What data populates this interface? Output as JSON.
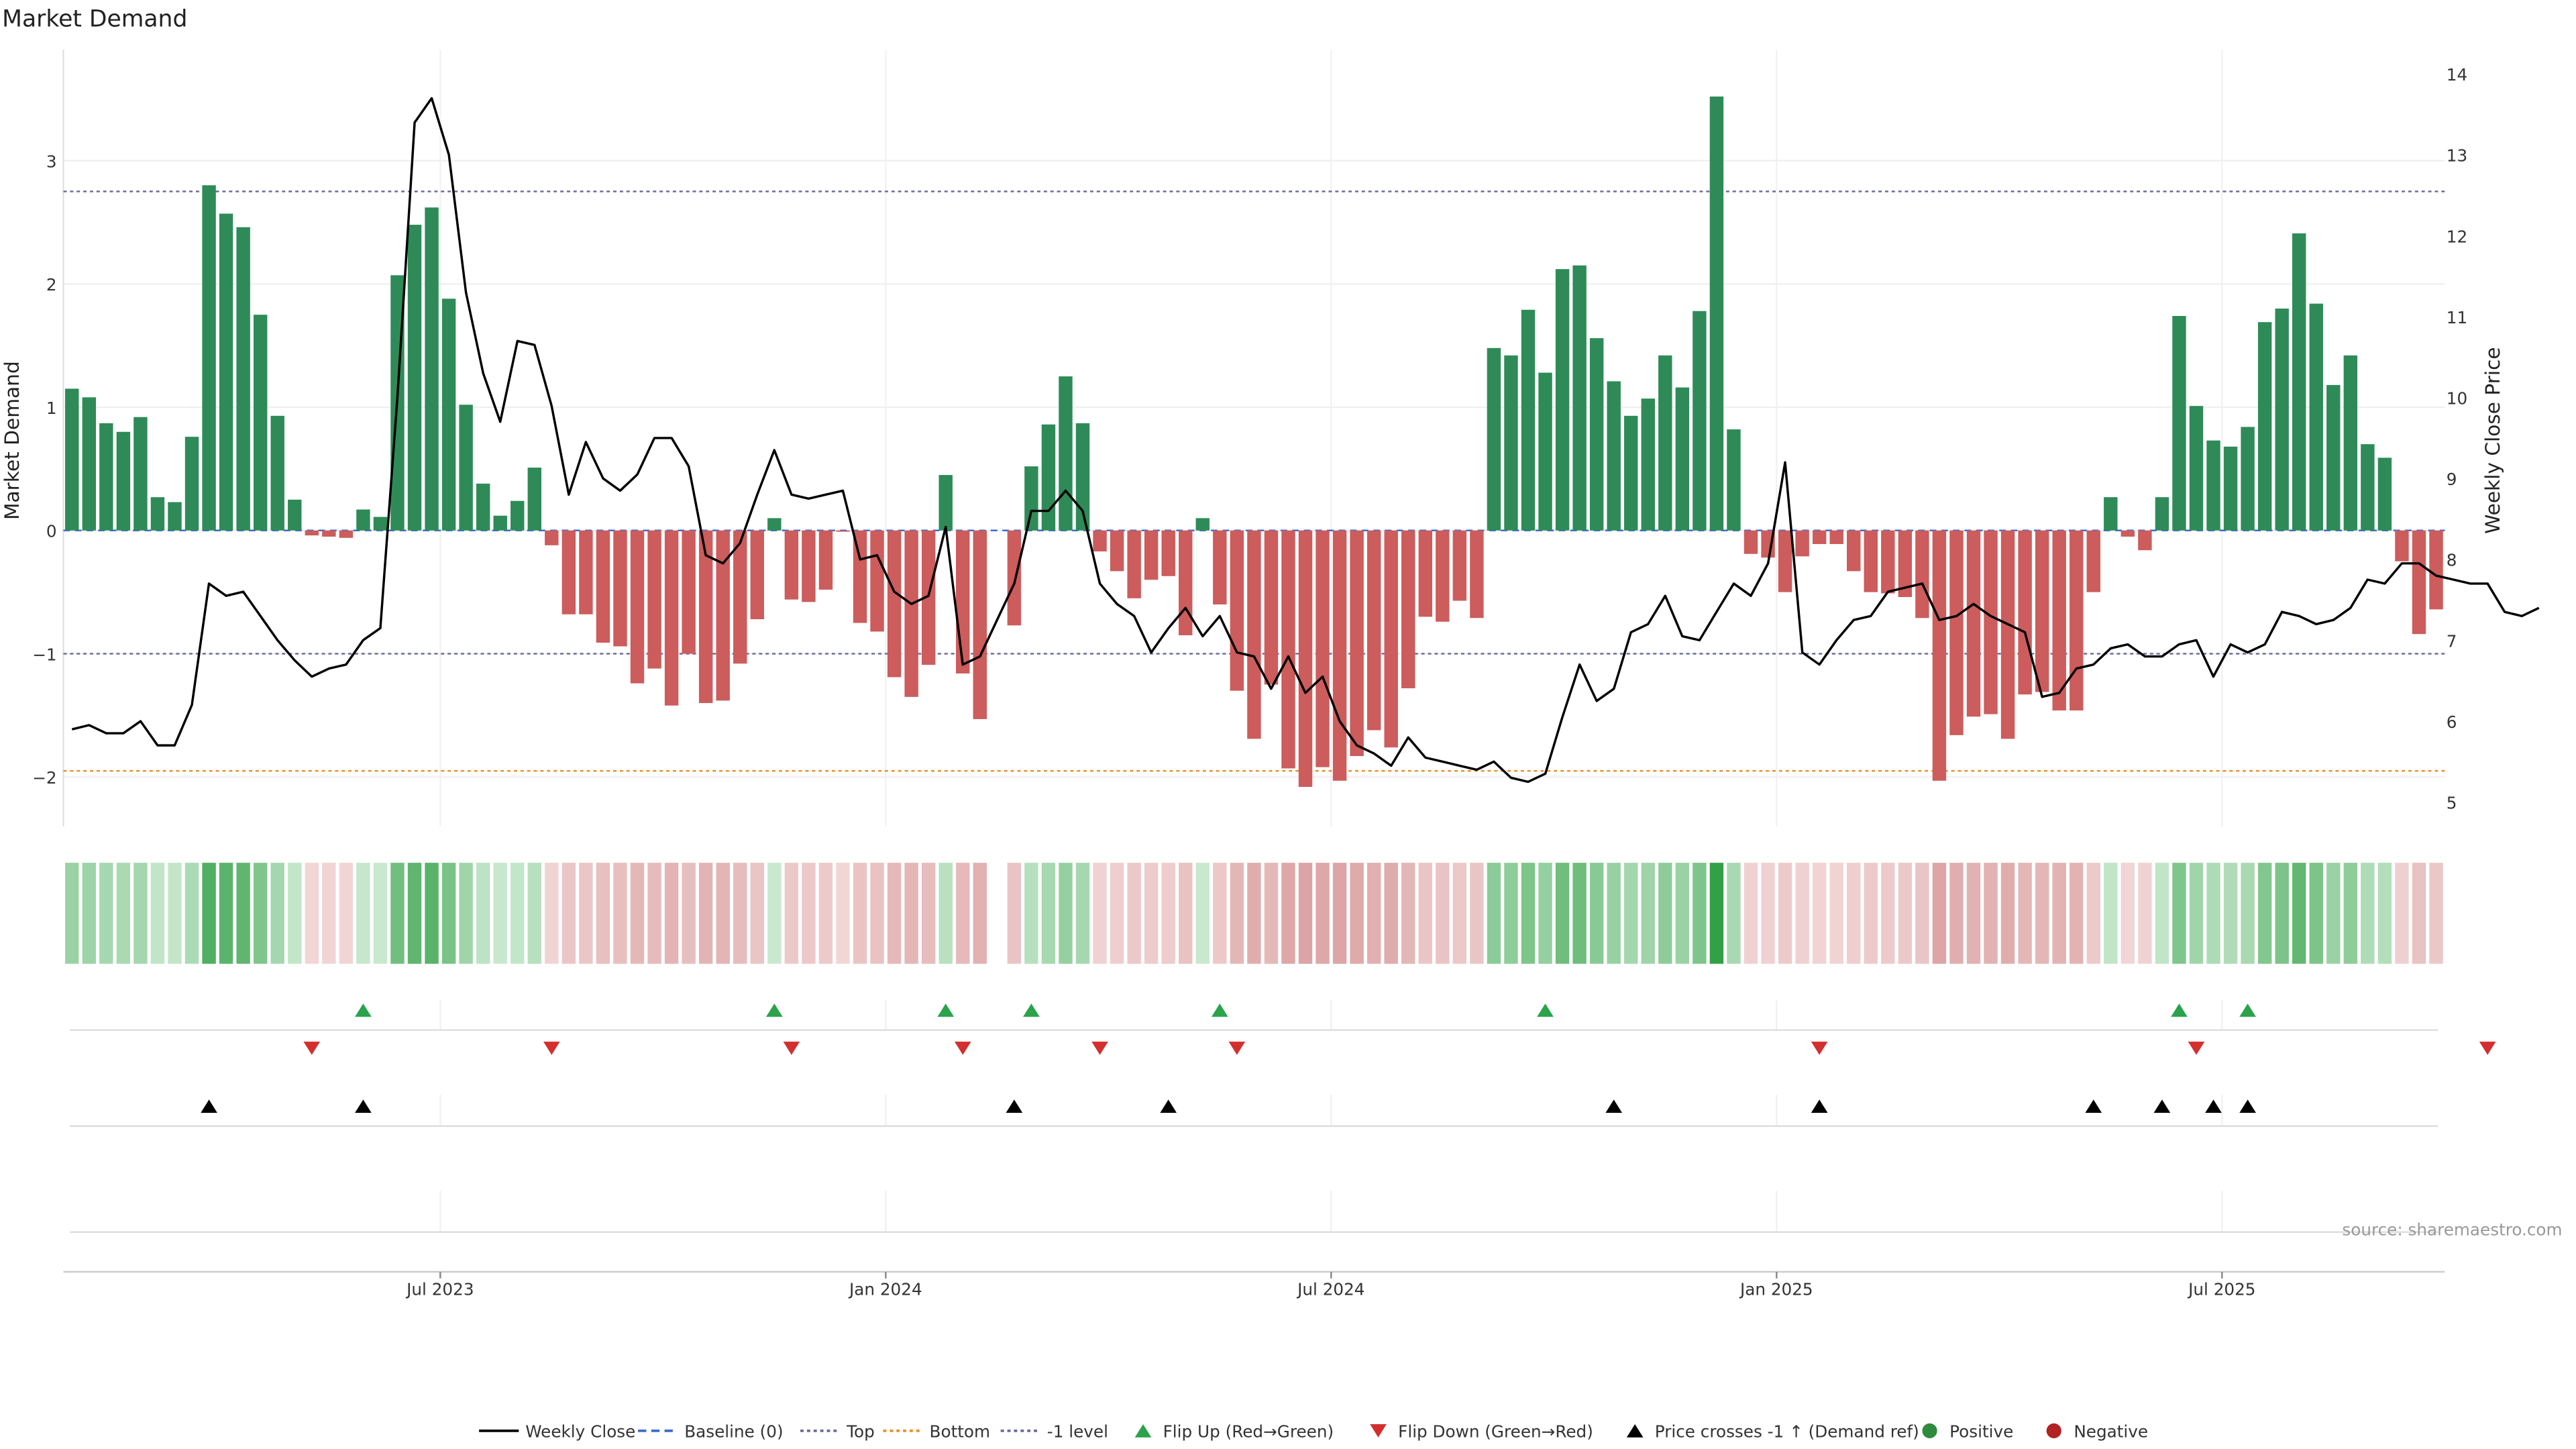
{
  "chart_data": {
    "type": "bar",
    "title": "Market Demand",
    "ylabel": "Market Demand",
    "y2label": "Weekly Close Price",
    "ylim": [
      -2.4,
      3.9
    ],
    "y2lim": [
      4.7,
      14.3
    ],
    "yticks": [
      -2,
      -1,
      0,
      1,
      2,
      3
    ],
    "ytick_labels": [
      "−2",
      "−1",
      "0",
      "1",
      "2",
      "3"
    ],
    "y2ticks": [
      5,
      6,
      7,
      8,
      9,
      10,
      11,
      12,
      13,
      14
    ],
    "y2tick_labels": [
      "5",
      "6",
      "7",
      "8",
      "9",
      "10",
      "11",
      "12",
      "13",
      "14"
    ],
    "xticks": [
      22,
      48,
      74,
      100,
      126
    ],
    "xtick_labels": [
      "Jul 2023",
      "Jan 2024",
      "Jul 2024",
      "Jan 2025",
      "Jul 2025"
    ],
    "reference_lines": {
      "baseline": 0,
      "top": 2.75,
      "bottom": -1.95,
      "minus_one": -1
    },
    "series": [
      {
        "name": "Market Demand",
        "values": [
          1.15,
          1.08,
          0.87,
          0.8,
          0.92,
          0.27,
          0.23,
          0.76,
          2.8,
          2.57,
          2.46,
          1.75,
          0.93,
          0.25,
          -0.04,
          -0.05,
          -0.06,
          0.17,
          0.11,
          2.07,
          2.48,
          2.62,
          1.88,
          1.02,
          0.38,
          0.12,
          0.24,
          0.51,
          -0.12,
          -0.68,
          -0.68,
          -0.91,
          -0.94,
          -1.24,
          -1.12,
          -1.42,
          -1.0,
          -1.4,
          -1.38,
          -1.08,
          -0.72,
          0.1,
          -0.56,
          -0.58,
          -0.48,
          -0.01,
          -0.75,
          -0.82,
          -1.19,
          -1.35,
          -1.09,
          0.45,
          -1.16,
          -1.53,
          null,
          -0.77,
          0.52,
          0.86,
          1.25,
          0.87,
          -0.17,
          -0.33,
          -0.55,
          -0.4,
          -0.37,
          -0.85,
          0.1,
          -0.6,
          -1.3,
          -1.69,
          -1.25,
          -1.93,
          -2.08,
          -1.92,
          -2.03,
          -1.83,
          -1.62,
          -1.76,
          -1.28,
          -0.7,
          -0.74,
          -0.57,
          -0.71,
          1.48,
          1.42,
          1.79,
          1.28,
          2.12,
          2.15,
          1.56,
          1.21,
          0.93,
          1.07,
          1.42,
          1.16,
          1.78,
          3.52,
          0.82,
          -0.19,
          -0.22,
          -0.5,
          -0.21,
          -0.11,
          -0.11,
          -0.33,
          -0.5,
          -0.51,
          -0.54,
          -0.71,
          -2.03,
          -1.66,
          -1.51,
          -1.49,
          -1.69,
          -1.33,
          -1.31,
          -1.46,
          -1.46,
          -0.5,
          0.27,
          -0.05,
          -0.16,
          0.27,
          1.74,
          1.01,
          0.73,
          0.68,
          0.84,
          1.69,
          1.8,
          2.41,
          1.84,
          1.18,
          1.42,
          0.7,
          0.59,
          -0.25,
          -0.84,
          -0.64
        ]
      },
      {
        "name": "Weekly Close",
        "axis": "right",
        "values": [
          5.9,
          5.95,
          5.85,
          5.85,
          6.0,
          5.7,
          5.7,
          6.2,
          7.7,
          7.55,
          7.6,
          7.3,
          7.0,
          6.75,
          6.55,
          6.65,
          6.7,
          7.0,
          7.15,
          10.0,
          13.4,
          13.7,
          13.0,
          11.3,
          10.3,
          9.7,
          10.7,
          10.65,
          9.9,
          8.8,
          9.45,
          9.0,
          8.85,
          9.05,
          9.5,
          9.5,
          9.15,
          8.05,
          7.95,
          8.2,
          8.8,
          9.35,
          8.8,
          8.75,
          8.8,
          8.85,
          8.0,
          8.05,
          7.6,
          7.45,
          7.55,
          8.4,
          6.7,
          6.8,
          7.25,
          7.7,
          8.6,
          8.6,
          8.85,
          8.6,
          7.7,
          7.45,
          7.3,
          6.85,
          7.15,
          7.4,
          7.05,
          7.3,
          6.85,
          6.8,
          6.4,
          6.8,
          6.35,
          6.55,
          6.0,
          5.7,
          5.6,
          5.45,
          5.8,
          5.55,
          5.5,
          5.45,
          5.4,
          5.5,
          5.3,
          5.25,
          5.35,
          6.05,
          6.7,
          6.25,
          6.4,
          7.1,
          7.2,
          7.55,
          7.05,
          7.0,
          7.35,
          7.7,
          7.55,
          7.95,
          9.2,
          6.85,
          6.7,
          7.0,
          7.25,
          7.3,
          7.6,
          7.65,
          7.7,
          7.25,
          7.3,
          7.45,
          7.3,
          7.2,
          7.1,
          6.3,
          6.35,
          6.65,
          6.7,
          6.9,
          6.95,
          6.8,
          6.8,
          6.95,
          7.0,
          6.55,
          6.95,
          6.85,
          6.95,
          7.35,
          7.3,
          7.2,
          7.25,
          7.4,
          7.75,
          7.7,
          7.95,
          7.95,
          7.8,
          7.75,
          7.7,
          7.7,
          7.35,
          7.3,
          7.4
        ]
      }
    ],
    "indicators": {
      "flip_up": [
        17,
        41,
        51,
        56,
        67,
        86,
        123,
        127
      ],
      "flip_down": [
        14,
        28,
        42,
        52,
        60,
        68,
        102,
        124,
        141
      ],
      "price_crosses": [
        8,
        17,
        55,
        64,
        90,
        102,
        118,
        122,
        125,
        127
      ]
    },
    "legend": {
      "position": "bottom",
      "entries": [
        {
          "label": "Weekly Close",
          "marker": "line",
          "color": "#000000"
        },
        {
          "label": "Baseline (0)",
          "marker": "dashed",
          "color": "#3a6ccf"
        },
        {
          "label": "Top",
          "marker": "dotted",
          "color": "#6b6b9e"
        },
        {
          "label": "Bottom",
          "marker": "dotted",
          "color": "#e8912a"
        },
        {
          "label": "-1 level",
          "marker": "dotted",
          "color": "#6b6b9e"
        },
        {
          "label": "Flip Up (Red→Green)",
          "marker": "triangle-up",
          "color": "#2aa34a"
        },
        {
          "label": "Flip Down (Green→Red)",
          "marker": "triangle-down",
          "color": "#d32f2f"
        },
        {
          "label": "Price crosses -1 ↑ (Demand ref)",
          "marker": "triangle-up",
          "color": "#000000"
        },
        {
          "label": "Positive",
          "marker": "circle",
          "color": "#2e8b3e"
        },
        {
          "label": "Negative",
          "marker": "circle",
          "color": "#b22222"
        }
      ]
    },
    "source": "source: sharemaestro.com"
  },
  "colors": {
    "positive": "#2e8b57",
    "negative": "#cd5c5c",
    "price": "#000000",
    "baseline": "#3a6ccf",
    "top": "#6b6b9e",
    "bottom": "#e8912a",
    "minus_one": "#6b6b9e",
    "flip_up": "#2aa34a",
    "flip_down": "#d32f2f",
    "cross": "#000000"
  }
}
